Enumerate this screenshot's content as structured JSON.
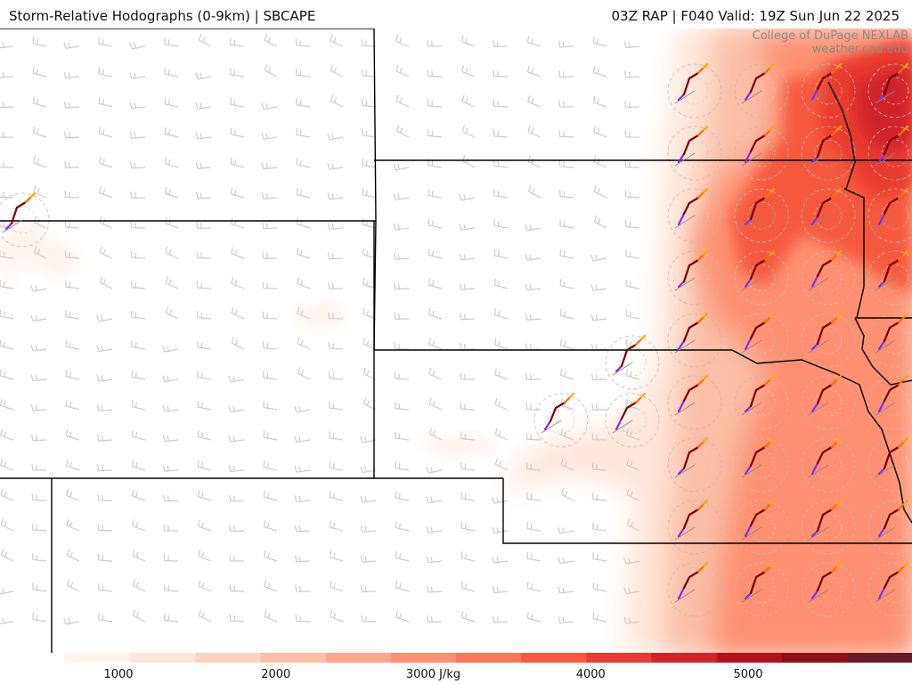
{
  "header": {
    "title_left": "Storm-Relative Hodographs (0-9km) | SBCAPE",
    "title_right": "03Z RAP | F040 Valid: 19Z Sun Jun 22 2025"
  },
  "credit": {
    "line1": "College of DuPage NEXLAB",
    "line2": "weather.cod.edu"
  },
  "colorbar": {
    "unit": "J/kg",
    "min": 0,
    "max": 6000,
    "ticks": [
      {
        "value": 1000,
        "label": "1000"
      },
      {
        "value": 2000,
        "label": "2000"
      },
      {
        "value": 3000,
        "label": "3000 J/kg"
      },
      {
        "value": 4000,
        "label": "4000"
      },
      {
        "value": 5000,
        "label": "5000"
      }
    ],
    "colors": [
      "#ffffff",
      "#fff3ec",
      "#fee6da",
      "#fdd3c1",
      "#fcbea5",
      "#fca78b",
      "#fc9070",
      "#fb7858",
      "#f6583e",
      "#e93b2f",
      "#d0232a",
      "#b31219",
      "#8f0f17",
      "#6b1a28"
    ]
  },
  "legend_colors": {
    "hodo_low": "#8a2be2",
    "hodo_mid": "#7a0000",
    "hodo_high": "#ff6a00",
    "hodo_top": "#ffa500",
    "barb": "#cccccc",
    "border": "#000000"
  }
}
